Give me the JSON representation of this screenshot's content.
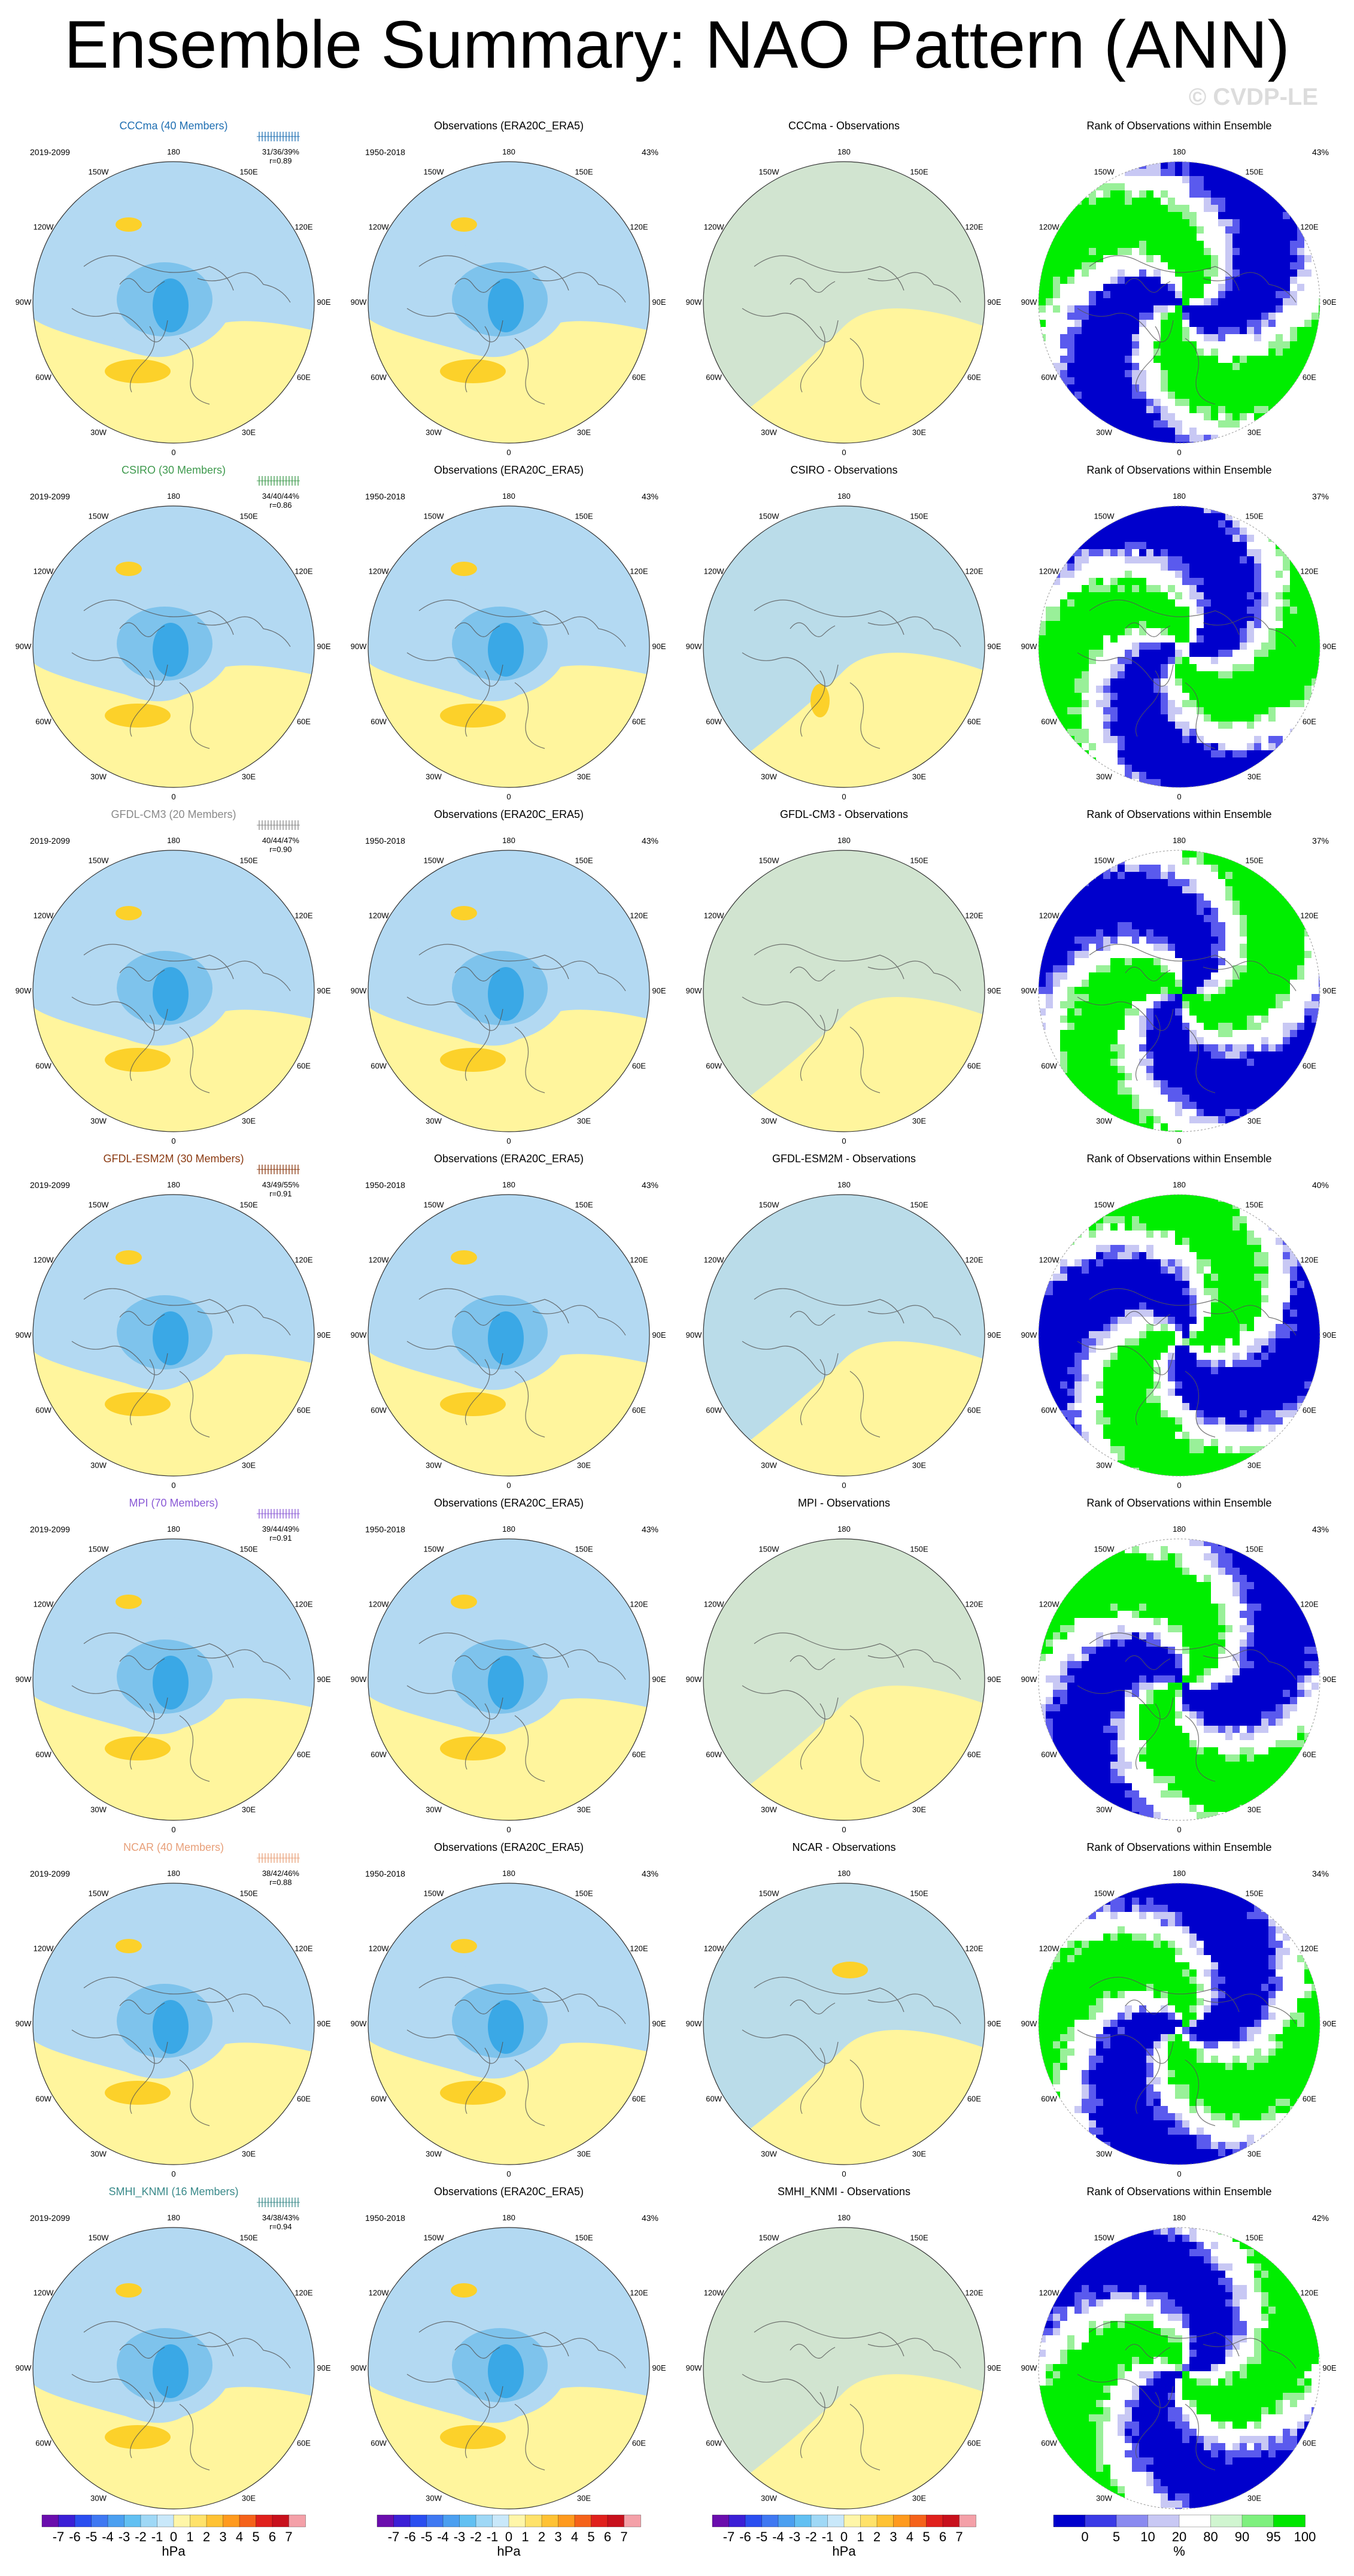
{
  "title": "Ensemble Summary: NAO Pattern (ANN)",
  "watermark": "© CVDP-LE",
  "colors": {
    "ocean_pos": "#fff59d",
    "neg1": "#b3d9f2",
    "neg2": "#7ec3ec",
    "neg3": "#3aa8e6",
    "pos_strong": "#fcd12a",
    "rank_low": "#0000cc",
    "rank_lowmid": "#5a5aee",
    "rank_pale": "#c8c8f4",
    "rank_high": "#00ee00",
    "rank_highmid": "#99f099",
    "white": "#ffffff",
    "coast": "#555555"
  },
  "icons": {
    "map": "polar-stereographic-map"
  },
  "lon_labels": [
    "180",
    "150E",
    "120E",
    "90E",
    "60E",
    "30E",
    "0",
    "30W",
    "60W",
    "90W",
    "120W",
    "150W"
  ],
  "rows": [
    {
      "model": "CCCma (40 Members)",
      "model_color": "#1f6fb2",
      "years": "2019-2099",
      "stats_line1": "31/36/39%",
      "stats_line2": "r=0.89",
      "obs_title": "Observations (ERA20C_ERA5)",
      "obs_years": "1950-2018",
      "obs_pct": "43%",
      "diff_title": "CCCma - Observations",
      "rank_title": "Rank of Observations within Ensemble",
      "rank_pct": "43%"
    },
    {
      "model": "CSIRO (30 Members)",
      "model_color": "#3f9a4e",
      "years": "2019-2099",
      "stats_line1": "34/40/44%",
      "stats_line2": "r=0.86",
      "obs_title": "Observations (ERA20C_ERA5)",
      "obs_years": "1950-2018",
      "obs_pct": "43%",
      "diff_title": "CSIRO - Observations",
      "rank_title": "Rank of Observations within Ensemble",
      "rank_pct": "37%"
    },
    {
      "model": "GFDL-CM3 (20 Members)",
      "model_color": "#8a8a8a",
      "years": "2019-2099",
      "stats_line1": "40/44/47%",
      "stats_line2": "r=0.90",
      "obs_title": "Observations (ERA20C_ERA5)",
      "obs_years": "1950-2018",
      "obs_pct": "43%",
      "diff_title": "GFDL-CM3 - Observations",
      "rank_title": "Rank of Observations within Ensemble",
      "rank_pct": "37%"
    },
    {
      "model": "GFDL-ESM2M (30 Members)",
      "model_color": "#8b3a12",
      "years": "2019-2099",
      "stats_line1": "43/49/55%",
      "stats_line2": "r=0.91",
      "obs_title": "Observations (ERA20C_ERA5)",
      "obs_years": "1950-2018",
      "obs_pct": "43%",
      "diff_title": "GFDL-ESM2M - Observations",
      "rank_title": "Rank of Observations within Ensemble",
      "rank_pct": "40%"
    },
    {
      "model": "MPI (70 Members)",
      "model_color": "#8a5ad6",
      "years": "2019-2099",
      "stats_line1": "39/44/49%",
      "stats_line2": "r=0.91",
      "obs_title": "Observations (ERA20C_ERA5)",
      "obs_years": "1950-2018",
      "obs_pct": "43%",
      "diff_title": "MPI - Observations",
      "rank_title": "Rank of Observations within Ensemble",
      "rank_pct": "43%"
    },
    {
      "model": "NCAR (40 Members)",
      "model_color": "#e8a07a",
      "years": "2019-2099",
      "stats_line1": "38/42/46%",
      "stats_line2": "r=0.88",
      "obs_title": "Observations (ERA20C_ERA5)",
      "obs_years": "1950-2018",
      "obs_pct": "43%",
      "diff_title": "NCAR - Observations",
      "rank_title": "Rank of Observations within Ensemble",
      "rank_pct": "34%"
    },
    {
      "model": "SMHI_KNMI (16 Members)",
      "model_color": "#3a8a8a",
      "years": "2019-2099",
      "stats_line1": "34/38/43%",
      "stats_line2": "r=0.94",
      "obs_title": "Observations (ERA20C_ERA5)",
      "obs_years": "1950-2018",
      "obs_pct": "43%",
      "diff_title": "SMHI_KNMI - Observations",
      "rank_title": "Rank of Observations within Ensemble",
      "rank_pct": "42%"
    }
  ],
  "colorbar_hpa": {
    "labels": [
      "-7",
      "-6",
      "-5",
      "-4",
      "-3",
      "-2",
      "-1",
      "0",
      "1",
      "2",
      "3",
      "4",
      "5",
      "6",
      "7"
    ],
    "colors": [
      "#6a0dad",
      "#3b1fd6",
      "#2a4ef0",
      "#3f78f2",
      "#4b9ff0",
      "#62c0f2",
      "#9fd8f6",
      "#c9e8fa",
      "#fff6a8",
      "#ffe26a",
      "#ffc234",
      "#ff9a1e",
      "#f5621a",
      "#e0201c",
      "#c8101c",
      "#f4a0a8"
    ],
    "unit": "hPa"
  },
  "colorbar_rank": {
    "labels": [
      "0",
      "5",
      "10",
      "20",
      "80",
      "90",
      "95",
      "100"
    ],
    "colors": [
      "#0000cc",
      "#3a3ae6",
      "#8a8af0",
      "#c8c8f4",
      "#ffffff",
      "#d0f5d0",
      "#7ef07e",
      "#00e600"
    ],
    "unit": "%"
  }
}
